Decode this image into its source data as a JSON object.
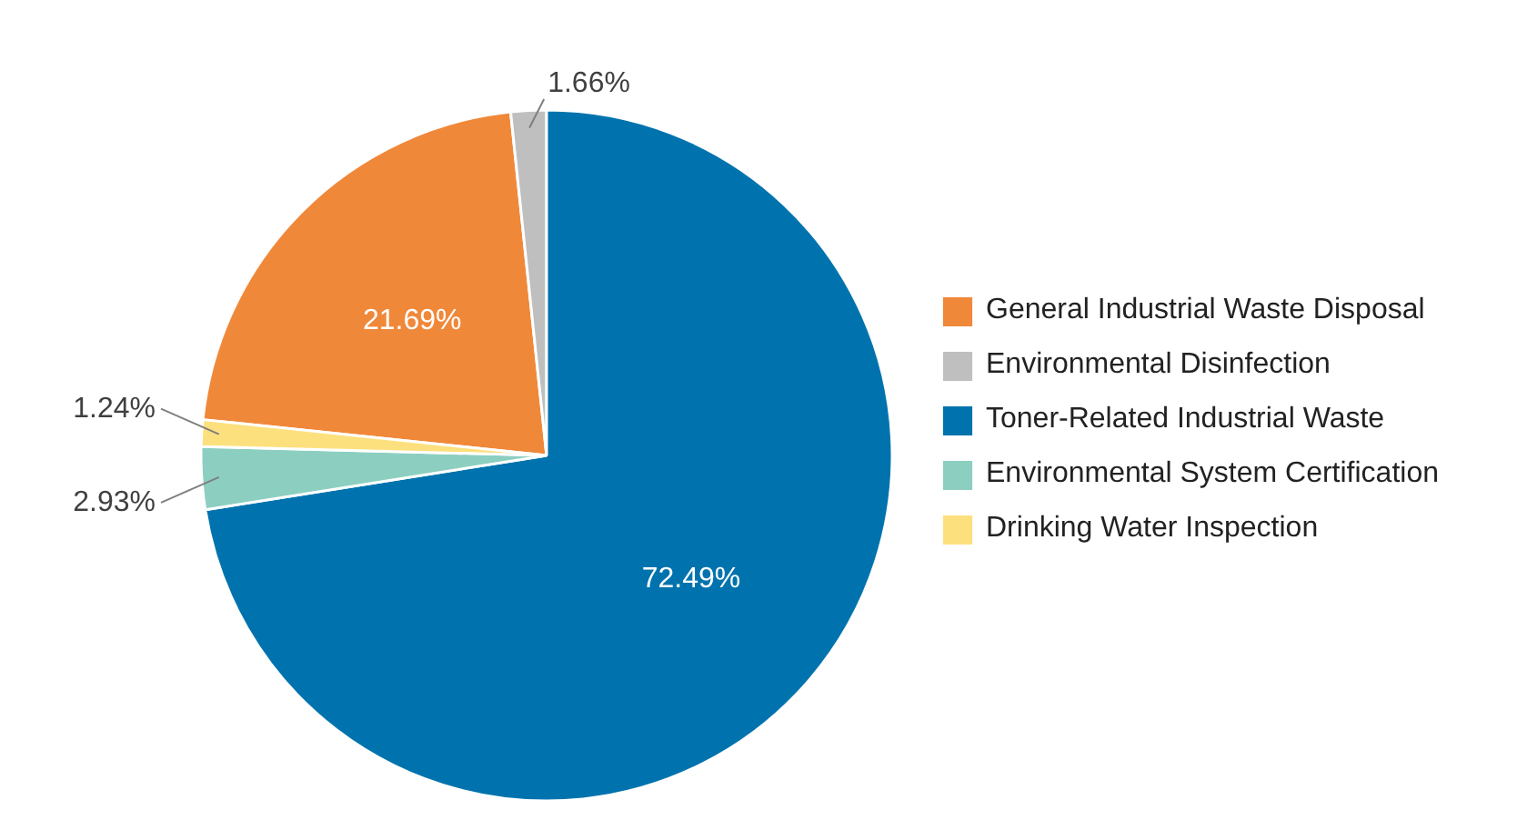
{
  "chart_data": {
    "type": "pie",
    "categories": [
      "General Industrial Waste Disposal",
      "Environmental Disinfection",
      "Toner-Related Industrial Waste",
      "Environmental System Certification",
      "Drinking Water Inspection"
    ],
    "values": [
      21.69,
      1.66,
      72.49,
      2.93,
      1.24
    ],
    "colors": [
      "#f0883a",
      "#bfbfbf",
      "#0073ae",
      "#8ccfc0",
      "#fde07e"
    ],
    "value_labels": [
      "21.69%",
      "1.66%",
      "72.49%",
      "2.93%",
      "1.24%"
    ],
    "legend": "right"
  }
}
